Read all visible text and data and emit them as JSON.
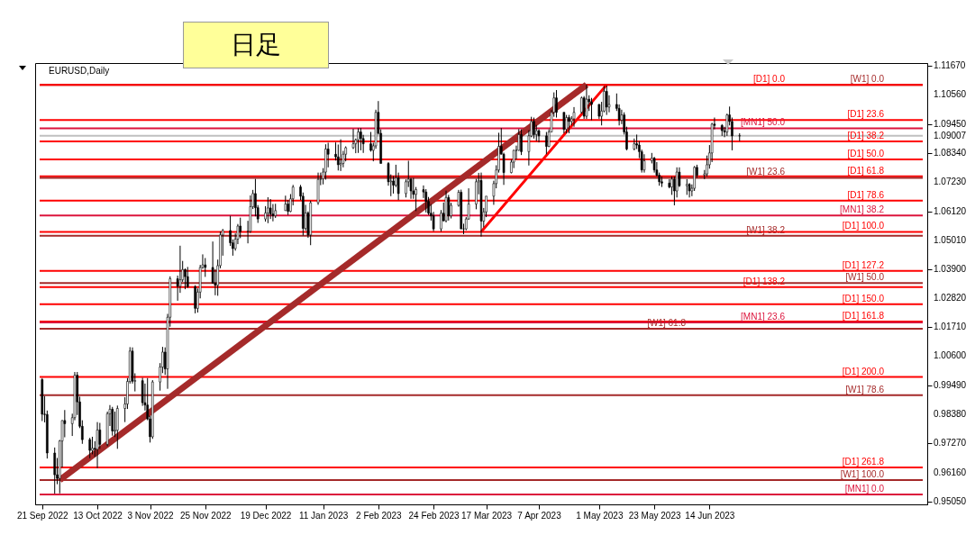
{
  "chart_data": {
    "type": "candlestick",
    "title": "日足",
    "annotations": [
      "EURUSD,Daily"
    ],
    "x": [
      "2022-09-21",
      "2022-09-22",
      "2022-09-23",
      "2022-09-26",
      "2022-09-27",
      "2022-09-28",
      "2022-09-29",
      "2022-09-30",
      "2022-10-03",
      "2022-10-04",
      "2022-10-05",
      "2022-10-06",
      "2022-10-07",
      "2022-10-10",
      "2022-10-11",
      "2022-10-12",
      "2022-10-13",
      "2022-10-14",
      "2022-10-17",
      "2022-10-18",
      "2022-10-19",
      "2022-10-20",
      "2022-10-21",
      "2022-10-24",
      "2022-10-25",
      "2022-10-26",
      "2022-10-27",
      "2022-10-28",
      "2022-10-31",
      "2022-11-01",
      "2022-11-02",
      "2022-11-03",
      "2022-11-04",
      "2022-11-07",
      "2022-11-08",
      "2022-11-09",
      "2022-11-10",
      "2022-11-11",
      "2022-11-14",
      "2022-11-15",
      "2022-11-16",
      "2022-11-17",
      "2022-11-18",
      "2022-11-21",
      "2022-11-22",
      "2022-11-23",
      "2022-11-24",
      "2022-11-25",
      "2022-11-28",
      "2022-11-29",
      "2022-11-30",
      "2022-12-01",
      "2022-12-02",
      "2022-12-05",
      "2022-12-06",
      "2022-12-07",
      "2022-12-08",
      "2022-12-09",
      "2022-12-12",
      "2022-12-13",
      "2022-12-14",
      "2022-12-15",
      "2022-12-16",
      "2022-12-19",
      "2022-12-20",
      "2022-12-21",
      "2022-12-22",
      "2022-12-23",
      "2022-12-27",
      "2022-12-28",
      "2022-12-29",
      "2022-12-30",
      "2023-01-02",
      "2023-01-03",
      "2023-01-04",
      "2023-01-05",
      "2023-01-06",
      "2023-01-09",
      "2023-01-10",
      "2023-01-11",
      "2023-01-12",
      "2023-01-13",
      "2023-01-16",
      "2023-01-17",
      "2023-01-18",
      "2023-01-19",
      "2023-01-20",
      "2023-01-23",
      "2023-01-24",
      "2023-01-25",
      "2023-01-26",
      "2023-01-27",
      "2023-01-30",
      "2023-01-31",
      "2023-02-01",
      "2023-02-02",
      "2023-02-03",
      "2023-02-06",
      "2023-02-07",
      "2023-02-08",
      "2023-02-09",
      "2023-02-10",
      "2023-02-13",
      "2023-02-14",
      "2023-02-15",
      "2023-02-16",
      "2023-02-17",
      "2023-02-20",
      "2023-02-21",
      "2023-02-22",
      "2023-02-23",
      "2023-02-24",
      "2023-02-27",
      "2023-02-28",
      "2023-03-01",
      "2023-03-02",
      "2023-03-03",
      "2023-03-06",
      "2023-03-07",
      "2023-03-08",
      "2023-03-09",
      "2023-03-10",
      "2023-03-13",
      "2023-03-14",
      "2023-03-15",
      "2023-03-16",
      "2023-03-17",
      "2023-03-20",
      "2023-03-21",
      "2023-03-22",
      "2023-03-23",
      "2023-03-24",
      "2023-03-27",
      "2023-03-28",
      "2023-03-29",
      "2023-03-30",
      "2023-03-31",
      "2023-04-03",
      "2023-04-04",
      "2023-04-05",
      "2023-04-06",
      "2023-04-07",
      "2023-04-10",
      "2023-04-11",
      "2023-04-12",
      "2023-04-13",
      "2023-04-14",
      "2023-04-17",
      "2023-04-18",
      "2023-04-19",
      "2023-04-20",
      "2023-04-21",
      "2023-04-24",
      "2023-04-25",
      "2023-04-26",
      "2023-04-27",
      "2023-04-28",
      "2023-05-01",
      "2023-05-02",
      "2023-05-03",
      "2023-05-04",
      "2023-05-05",
      "2023-05-08",
      "2023-05-09",
      "2023-05-10",
      "2023-05-11",
      "2023-05-12",
      "2023-05-15",
      "2023-05-16",
      "2023-05-17",
      "2023-05-18",
      "2023-05-19",
      "2023-05-22",
      "2023-05-23",
      "2023-05-24",
      "2023-05-25",
      "2023-05-26",
      "2023-05-29",
      "2023-05-30",
      "2023-05-31",
      "2023-06-01",
      "2023-06-02",
      "2023-06-05",
      "2023-06-06",
      "2023-06-07",
      "2023-06-08",
      "2023-06-09",
      "2023-06-12",
      "2023-06-13",
      "2023-06-14",
      "2023-06-15",
      "2023-06-16",
      "2023-06-19",
      "2023-06-20",
      "2023-06-21",
      "2023-06-22",
      "2023-06-23",
      "2023-06-26"
    ],
    "ohlc": [
      [
        0.997,
        0.9976,
        0.9812,
        0.9838
      ],
      [
        0.9838,
        0.9907,
        0.9807,
        0.9837
      ],
      [
        0.9837,
        0.9852,
        0.9669,
        0.969
      ],
      [
        0.969,
        0.9711,
        0.9535,
        0.9607
      ],
      [
        0.9607,
        0.9671,
        0.9571,
        0.9593
      ],
      [
        0.9593,
        0.974,
        0.9536,
        0.9736
      ],
      [
        0.9736,
        0.9815,
        0.9635,
        0.9814
      ],
      [
        0.9814,
        0.9854,
        0.975,
        0.9802
      ],
      [
        0.9802,
        0.984,
        0.9755,
        0.9825
      ],
      [
        0.9825,
        0.9999,
        0.9815,
        0.9987
      ],
      [
        0.9987,
        0.9999,
        0.9835,
        0.9885
      ],
      [
        0.9885,
        0.9905,
        0.9785,
        0.9792
      ],
      [
        0.9792,
        0.9815,
        0.9725,
        0.9741
      ],
      [
        0.9741,
        0.9748,
        0.967,
        0.97
      ],
      [
        0.97,
        0.9752,
        0.9685,
        0.9708
      ],
      [
        0.9708,
        0.9735,
        0.9675,
        0.9704
      ],
      [
        0.9704,
        0.9808,
        0.9632,
        0.9778
      ],
      [
        0.9778,
        0.9805,
        0.9706,
        0.9723
      ],
      [
        0.9723,
        0.9848,
        0.9716,
        0.984
      ],
      [
        0.984,
        0.9873,
        0.9793,
        0.9857
      ],
      [
        0.9857,
        0.9866,
        0.9756,
        0.9774
      ],
      [
        0.9774,
        0.9848,
        0.9751,
        0.9777
      ],
      [
        0.9777,
        0.9871,
        0.9706,
        0.986
      ],
      [
        0.986,
        0.9903,
        0.9808,
        0.9877
      ],
      [
        0.9877,
        0.9976,
        0.9858,
        0.9963
      ],
      [
        0.9963,
        1.0094,
        0.9955,
        1.0079
      ],
      [
        1.0079,
        1.0093,
        0.9955,
        0.9964
      ],
      [
        0.9964,
        0.9994,
        0.9925,
        0.9966
      ],
      [
        0.9966,
        0.9977,
        0.987,
        0.9882
      ],
      [
        0.9882,
        0.9955,
        0.9852,
        0.9873
      ],
      [
        0.9873,
        0.9976,
        0.9815,
        0.982
      ],
      [
        0.982,
        0.9832,
        0.973,
        0.9752
      ],
      [
        0.9752,
        0.9968,
        0.9744,
        0.9961
      ],
      [
        0.9961,
        1.0033,
        0.9928,
        1.0018
      ],
      [
        1.0018,
        1.0095,
        0.9995,
        1.0075
      ],
      [
        1.0075,
        1.0093,
        0.9988,
        1.0011
      ],
      [
        1.0011,
        1.0221,
        0.9935,
        1.0208
      ],
      [
        1.0208,
        1.0364,
        1.0172,
        1.0355
      ],
      [
        1.0355,
        1.0367,
        1.0271,
        1.0326
      ],
      [
        1.0326,
        1.0481,
        1.0301,
        1.0351
      ],
      [
        1.0351,
        1.0423,
        1.0343,
        1.039
      ],
      [
        1.039,
        1.0394,
        1.0315,
        1.0363
      ],
      [
        1.0363,
        1.04,
        1.032,
        1.0325
      ],
      [
        1.0325,
        1.033,
        1.0223,
        1.0242
      ],
      [
        1.0242,
        1.0318,
        1.0226,
        1.0304
      ],
      [
        1.0304,
        1.0408,
        1.028,
        1.0398
      ],
      [
        1.0398,
        1.0448,
        1.0393,
        1.0408
      ],
      [
        1.0408,
        1.0434,
        1.0362,
        1.0398
      ],
      [
        1.0398,
        1.0497,
        1.0338,
        1.0338
      ],
      [
        1.0338,
        1.0391,
        1.0292,
        1.033
      ],
      [
        1.033,
        1.0428,
        1.029,
        1.0405
      ],
      [
        1.0405,
        1.0535,
        1.0395,
        1.0522
      ],
      [
        1.0522,
        1.0545,
        1.0443,
        1.0539
      ],
      [
        1.0539,
        1.0595,
        1.048,
        1.0492
      ],
      [
        1.0492,
        1.0505,
        1.0443,
        1.047
      ],
      [
        1.047,
        1.0528,
        1.0462,
        1.0506
      ],
      [
        1.0506,
        1.0564,
        1.0487,
        1.0556
      ],
      [
        1.0556,
        1.0588,
        1.051,
        1.0535
      ],
      [
        1.0535,
        1.0576,
        1.049,
        1.0536
      ],
      [
        1.0536,
        1.0673,
        1.053,
        1.063
      ],
      [
        1.063,
        1.0694,
        1.0621,
        1.068
      ],
      [
        1.068,
        1.0736,
        1.0593,
        1.0626
      ],
      [
        1.0626,
        1.0636,
        1.0568,
        1.0583
      ],
      [
        1.0583,
        1.0632,
        1.0573,
        1.0606
      ],
      [
        1.0606,
        1.0666,
        1.0567,
        1.0625
      ],
      [
        1.0625,
        1.0659,
        1.0583,
        1.0602
      ],
      [
        1.0602,
        1.064,
        1.0574,
        1.0595
      ],
      [
        1.0595,
        1.0641,
        1.0587,
        1.0615
      ],
      [
        1.0615,
        1.0672,
        1.0614,
        1.064
      ],
      [
        1.064,
        1.0655,
        1.0598,
        1.0612
      ],
      [
        1.0612,
        1.0678,
        1.0609,
        1.066
      ],
      [
        1.066,
        1.0713,
        1.0635,
        1.0705
      ],
      [
        1.0705,
        1.0713,
        1.0655,
        1.067
      ],
      [
        1.067,
        1.0684,
        1.052,
        1.0547
      ],
      [
        1.0547,
        1.0637,
        1.0539,
        1.0606
      ],
      [
        1.0606,
        1.0612,
        1.0511,
        1.0522
      ],
      [
        1.0522,
        1.0653,
        1.0483,
        1.0645
      ],
      [
        1.0645,
        1.076,
        1.0637,
        1.0734
      ],
      [
        1.0734,
        1.076,
        1.0712,
        1.0736
      ],
      [
        1.0736,
        1.0777,
        1.0715,
        1.0762
      ],
      [
        1.0762,
        1.0868,
        1.0733,
        1.085
      ],
      [
        1.085,
        1.0874,
        1.078,
        1.083
      ],
      [
        1.083,
        1.0875,
        1.0806,
        1.082
      ],
      [
        1.082,
        1.0867,
        1.0768,
        1.079
      ],
      [
        1.079,
        1.0887,
        1.0766,
        1.0795
      ],
      [
        1.0795,
        1.0843,
        1.078,
        1.083
      ],
      [
        1.083,
        1.086,
        1.0803,
        1.0855
      ],
      [
        1.0855,
        1.0927,
        1.085,
        1.087
      ],
      [
        1.087,
        1.089,
        1.0834,
        1.0885
      ],
      [
        1.0885,
        1.0929,
        1.0835,
        1.0915
      ],
      [
        1.0915,
        1.093,
        1.0845,
        1.089
      ],
      [
        1.089,
        1.0904,
        1.0835,
        1.087
      ],
      [
        1.087,
        1.0915,
        1.084,
        1.0845
      ],
      [
        1.0845,
        1.0874,
        1.0803,
        1.0862
      ],
      [
        1.0862,
        1.1,
        1.0851,
        1.099
      ],
      [
        1.099,
        1.1033,
        1.0905,
        1.091
      ],
      [
        1.091,
        1.0925,
        1.0795,
        1.0795
      ],
      [
        1.0795,
        1.08,
        1.071,
        1.0725
      ],
      [
        1.0725,
        1.0753,
        1.067,
        1.0728
      ],
      [
        1.0728,
        1.0747,
        1.068,
        1.0712
      ],
      [
        1.0712,
        1.079,
        1.0705,
        1.074
      ],
      [
        1.074,
        1.076,
        1.0655,
        1.068
      ],
      [
        1.068,
        1.0734,
        1.0665,
        1.0725
      ],
      [
        1.0725,
        1.0805,
        1.0705,
        1.0735
      ],
      [
        1.0735,
        1.074,
        1.066,
        1.069
      ],
      [
        1.069,
        1.074,
        1.066,
        1.0677
      ],
      [
        1.0677,
        1.0705,
        1.0613,
        1.0695
      ],
      [
        1.0695,
        1.0711,
        1.0663,
        1.0686
      ],
      [
        1.0686,
        1.0697,
        1.0608,
        1.065
      ],
      [
        1.065,
        1.0667,
        1.0598,
        1.0605
      ],
      [
        1.0605,
        1.064,
        1.0577,
        1.0595
      ],
      [
        1.0595,
        1.061,
        1.0536,
        1.0545
      ],
      [
        1.0545,
        1.0617,
        1.0535,
        1.0605
      ],
      [
        1.0605,
        1.0646,
        1.0574,
        1.0576
      ],
      [
        1.0576,
        1.0691,
        1.057,
        1.0665
      ],
      [
        1.0665,
        1.0675,
        1.0577,
        1.0595
      ],
      [
        1.0595,
        1.0645,
        1.0585,
        1.0635
      ],
      [
        1.0635,
        1.0694,
        1.063,
        1.0685
      ],
      [
        1.0685,
        1.0695,
        1.0545,
        1.0545
      ],
      [
        1.0545,
        1.0565,
        1.0525,
        1.0545
      ],
      [
        1.0545,
        1.059,
        1.054,
        1.0583
      ],
      [
        1.0583,
        1.07,
        1.058,
        1.064
      ],
      [
        1.064,
        1.0736,
        1.062,
        1.0725
      ],
      [
        1.0725,
        1.0759,
        1.0677,
        1.073
      ],
      [
        1.073,
        1.076,
        1.0516,
        1.0575
      ],
      [
        1.0575,
        1.0625,
        1.0551,
        1.061
      ],
      [
        1.061,
        1.067,
        1.059,
        1.067
      ],
      [
        1.067,
        1.0729,
        1.0637,
        1.0718
      ],
      [
        1.0718,
        1.0788,
        1.07,
        1.077
      ],
      [
        1.077,
        1.0912,
        1.076,
        1.086
      ],
      [
        1.086,
        1.093,
        1.083,
        1.083
      ],
      [
        1.083,
        1.0836,
        1.0713,
        1.076
      ],
      [
        1.076,
        1.081,
        1.0757,
        1.08
      ],
      [
        1.08,
        1.0847,
        1.0777,
        1.0845
      ],
      [
        1.0845,
        1.0863,
        1.081,
        1.0845
      ],
      [
        1.0845,
        1.0926,
        1.0843,
        1.0905
      ],
      [
        1.0905,
        1.0925,
        1.0827,
        1.084
      ],
      [
        1.084,
        1.0922,
        1.0787,
        1.09
      ],
      [
        1.09,
        1.0973,
        1.0895,
        1.0955
      ],
      [
        1.0955,
        1.097,
        1.089,
        1.0905
      ],
      [
        1.0905,
        1.0942,
        1.088,
        1.092
      ],
      [
        1.092,
        1.0925,
        1.0875,
        1.09
      ],
      [
        1.09,
        1.0915,
        1.083,
        1.086
      ],
      [
        1.086,
        1.0925,
        1.0857,
        1.0915
      ],
      [
        1.0915,
        1.1,
        1.0915,
        1.099
      ],
      [
        1.099,
        1.1066,
        1.0973,
        1.1045
      ],
      [
        1.1045,
        1.1075,
        1.097,
        1.099
      ],
      [
        1.099,
        1.099,
        1.091,
        1.0925
      ],
      [
        1.0925,
        1.098,
        1.091,
        1.097
      ],
      [
        1.097,
        1.098,
        1.091,
        1.0955
      ],
      [
        1.0955,
        1.0975,
        1.094,
        1.0965
      ],
      [
        1.0965,
        1.101,
        1.0935,
        1.099
      ],
      [
        1.099,
        1.105,
        1.0985,
        1.1045
      ],
      [
        1.1045,
        1.1052,
        1.0965,
        1.0975
      ],
      [
        1.0975,
        1.1095,
        1.0965,
        1.104
      ],
      [
        1.104,
        1.1055,
        1.0995,
        1.103
      ],
      [
        1.103,
        1.1045,
        1.096,
        1.102
      ],
      [
        1.102,
        1.1022,
        1.0965,
        1.0975
      ],
      [
        1.0975,
        1.103,
        1.094,
        1.0995
      ],
      [
        1.0995,
        1.109,
        1.099,
        1.107
      ],
      [
        1.107,
        1.1092,
        1.098,
        1.101
      ],
      [
        1.101,
        1.1055,
        1.099,
        1.102
      ],
      [
        1.102,
        1.1062,
        1.0995,
        1.1005
      ],
      [
        1.1005,
        1.102,
        1.094,
        1.096
      ],
      [
        1.096,
        1.1,
        1.0945,
        1.098
      ],
      [
        1.098,
        1.099,
        1.0905,
        1.0915
      ],
      [
        1.0915,
        1.0935,
        1.0845,
        1.085
      ],
      [
        1.085,
        1.089,
        1.0845,
        1.087
      ],
      [
        1.087,
        1.0905,
        1.085,
        1.0865
      ],
      [
        1.0865,
        1.088,
        1.0815,
        1.084
      ],
      [
        1.084,
        1.0848,
        1.076,
        1.077
      ],
      [
        1.077,
        1.083,
        1.076,
        1.0805
      ],
      [
        1.0805,
        1.0835,
        1.0795,
        1.0815
      ],
      [
        1.0815,
        1.082,
        1.076,
        1.077
      ],
      [
        1.077,
        1.08,
        1.0745,
        1.075
      ],
      [
        1.075,
        1.076,
        1.071,
        1.0725
      ],
      [
        1.0725,
        1.0745,
        1.0705,
        1.072
      ],
      [
        1.072,
        1.0735,
        1.07,
        1.0705
      ],
      [
        1.0705,
        1.0745,
        1.0675,
        1.0735
      ],
      [
        1.0735,
        1.0745,
        1.0635,
        1.069
      ],
      [
        1.069,
        1.078,
        1.0665,
        1.0762
      ],
      [
        1.0762,
        1.078,
        1.0705,
        1.071
      ],
      [
        1.071,
        1.0735,
        1.0675,
        1.0715
      ],
      [
        1.0715,
        1.072,
        1.0665,
        1.069
      ],
      [
        1.069,
        1.0715,
        1.067,
        1.07
      ],
      [
        1.07,
        1.0785,
        1.069,
        1.078
      ],
      [
        1.078,
        1.079,
        1.074,
        1.075
      ],
      [
        1.075,
        1.077,
        1.0735,
        1.0755
      ],
      [
        1.0755,
        1.0825,
        1.0745,
        1.079
      ],
      [
        1.079,
        1.0865,
        1.0775,
        1.0835
      ],
      [
        1.0835,
        1.095,
        1.08,
        1.0945
      ],
      [
        1.0945,
        1.097,
        1.0925,
        1.094
      ],
      [
        1.094,
        1.0945,
        1.09,
        1.092
      ],
      [
        1.092,
        1.0935,
        1.0895,
        1.0915
      ],
      [
        1.0915,
        1.0985,
        1.09,
        1.098
      ],
      [
        1.098,
        1.1012,
        1.094,
        1.0955
      ],
      [
        1.0955,
        1.097,
        1.0845,
        1.09
      ],
      [
        1.09,
        1.091,
        1.088,
        1.0901
      ]
    ],
    "series": [
      {
        "type": "line",
        "color": "#a52a2a",
        "x": [
          "2022-09-28",
          "2023-04-26"
        ],
        "values": [
          0.9587,
          1.1095
        ]
      },
      {
        "type": "line",
        "color": "#ff0000",
        "x": [
          "2023-03-15",
          "2023-05-04"
        ],
        "values": [
          1.0534,
          1.1095
        ]
      }
    ],
    "ref_lines": [
      {
        "axis": "y",
        "value": 1.1095,
        "label": "[W1] 0.0",
        "color": "#a52a2a"
      },
      {
        "axis": "y",
        "value": 1.1095,
        "label": "[D1] 0.0",
        "color": "#ff0000"
      },
      {
        "axis": "y",
        "value": 1.0961,
        "label": "[D1] 23.6",
        "color": "#ff0000"
      },
      {
        "axis": "y",
        "value": 1.0929,
        "label": "[MN1] 50.0",
        "color": "#dc143c"
      },
      {
        "axis": "y",
        "value": 1.09007,
        "color": "#c0c0c0"
      },
      {
        "axis": "y",
        "value": 1.0879,
        "label": "[D1] 38.2",
        "color": "#ff0000"
      },
      {
        "axis": "y",
        "value": 1.081,
        "label": "[D1] 50.0",
        "color": "#ff0000"
      },
      {
        "axis": "y",
        "value": 1.0746,
        "label": "[D1] 61.8",
        "color": "#ff0000"
      },
      {
        "axis": "y",
        "value": 1.074,
        "label": "[W1] 23.6",
        "color": "#a52a2a"
      },
      {
        "axis": "y",
        "value": 1.0653,
        "label": "[D1] 78.6",
        "color": "#ff0000"
      },
      {
        "axis": "y",
        "value": 1.0596,
        "label": "[MN1] 38.2",
        "color": "#dc143c"
      },
      {
        "axis": "y",
        "value": 1.0534,
        "label": "[D1] 100.0",
        "color": "#ff0000"
      },
      {
        "axis": "y",
        "value": 1.0519,
        "label": "[W1] 38.2",
        "color": "#a52a2a"
      },
      {
        "axis": "y",
        "value": 1.0385,
        "label": "[D1] 127.2",
        "color": "#ff0000"
      },
      {
        "axis": "y",
        "value": 1.0339,
        "label": "[W1] 50.0",
        "color": "#a52a2a"
      },
      {
        "axis": "y",
        "value": 1.0323,
        "label": "[D1] 138.2",
        "color": "#ff0000"
      },
      {
        "axis": "y",
        "value": 1.0258,
        "label": "[D1] 150.0",
        "color": "#ff0000"
      },
      {
        "axis": "y",
        "value": 1.0192,
        "label": "[D1] 161.8",
        "color": "#ff0000"
      },
      {
        "axis": "y",
        "value": 1.0188,
        "label": "[MN1] 23.6",
        "color": "#dc143c"
      },
      {
        "axis": "y",
        "value": 1.0164,
        "label": "[W1] 61.8",
        "color": "#a52a2a"
      },
      {
        "axis": "y",
        "value": 0.998,
        "label": "[D1] 200.0",
        "color": "#ff0000"
      },
      {
        "axis": "y",
        "value": 0.9911,
        "label": "[W1] 78.6",
        "color": "#a52a2a"
      },
      {
        "axis": "y",
        "value": 0.9635,
        "label": "[D1] 261.8",
        "color": "#ff0000"
      },
      {
        "axis": "y",
        "value": 0.9587,
        "label": "[W1] 100.0",
        "color": "#a52a2a"
      },
      {
        "axis": "y",
        "value": 0.9532,
        "label": "[MN1] 0.0",
        "color": "#dc143c"
      }
    ],
    "xlim": [
      "2022-09-20",
      "2023-09-07"
    ],
    "xticks": [
      {
        "value": "2022-09-21",
        "label": "21 Sep 2022"
      },
      {
        "value": "2022-10-13",
        "label": "13 Oct 2022"
      },
      {
        "value": "2022-11-03",
        "label": "3 Nov 2022"
      },
      {
        "value": "2022-11-25",
        "label": "25 Nov 2022"
      },
      {
        "value": "2022-12-19",
        "label": "19 Dec 2022"
      },
      {
        "value": "2023-01-11",
        "label": "11 Jan 2023"
      },
      {
        "value": "2023-02-02",
        "label": "2 Feb 2023"
      },
      {
        "value": "2023-02-24",
        "label": "24 Feb 2023"
      },
      {
        "value": "2023-03-17",
        "label": "17 Mar 2023"
      },
      {
        "value": "2023-04-07",
        "label": "7 Apr 2023"
      },
      {
        "value": "2023-05-01",
        "label": "1 May 2023"
      },
      {
        "value": "2023-05-23",
        "label": "23 May 2023"
      },
      {
        "value": "2023-06-14",
        "label": "14 Jun 2023"
      }
    ],
    "ylim": [
      0.9494,
      1.1178
    ],
    "yticks": [
      {
        "value": 0.9505,
        "label": "0.95050"
      },
      {
        "value": 0.9616,
        "label": "0.96160"
      },
      {
        "value": 0.9727,
        "label": "0.97270"
      },
      {
        "value": 0.9838,
        "label": "0.98380"
      },
      {
        "value": 0.9949,
        "label": "0.99490"
      },
      {
        "value": 1.006,
        "label": "1.00600"
      },
      {
        "value": 1.0171,
        "label": "1.01710"
      },
      {
        "value": 1.0282,
        "label": "1.02820"
      },
      {
        "value": 1.039,
        "label": "1.03900"
      },
      {
        "value": 1.0501,
        "label": "1.05010"
      },
      {
        "value": 1.0612,
        "label": "1.06120"
      },
      {
        "value": 1.0723,
        "label": "1.07230"
      },
      {
        "value": 1.0834,
        "label": "1.08340"
      },
      {
        "value": 1.09007,
        "label": "1.09007"
      },
      {
        "value": 1.0945,
        "label": "1.09450"
      },
      {
        "value": 1.1056,
        "label": "1.10560"
      },
      {
        "value": 1.1167,
        "label": "1.11670"
      }
    ],
    "grid": false
  }
}
